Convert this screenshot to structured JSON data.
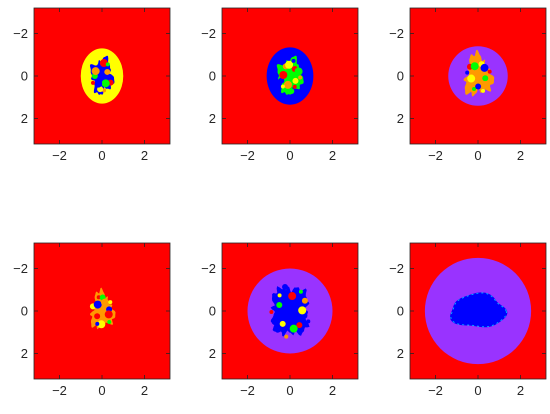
{
  "chart_data": {
    "type": "heatmap",
    "grid": false,
    "xlim": [
      -3.2,
      3.2
    ],
    "ylim": [
      -3.2,
      3.2
    ],
    "y_reversed": true,
    "x_ticks": [
      -2,
      0,
      2
    ],
    "y_ticks": [
      -2,
      0,
      2
    ],
    "x_tick_labels": [
      "−2",
      "0",
      "2"
    ],
    "y_tick_labels": [
      "−2",
      "0",
      "2"
    ],
    "title": "",
    "xlabel": "",
    "ylabel": "",
    "colors": {
      "background": "#ff0000",
      "yellow": "#ffff00",
      "blue": "#0000ff",
      "violet": "#9933ff",
      "green": "#00ff00",
      "orange": "#ff9900",
      "axes": "#262626"
    },
    "panels": [
      {
        "panel": 1,
        "outer_region": "yellow",
        "outer_radius": [
          1.0,
          1.3
        ],
        "inner_region": "blue",
        "inner_radius": [
          0.5,
          0.8
        ],
        "inner_shape": "fractal"
      },
      {
        "panel": 2,
        "outer_region": "blue",
        "outer_radius": [
          1.1,
          1.35
        ],
        "inner_region": "green",
        "inner_radius": [
          0.55,
          0.8
        ],
        "inner_shape": "fractal"
      },
      {
        "panel": 3,
        "outer_region": "violet",
        "outer_radius": [
          1.4,
          1.4
        ],
        "inner_region": "orange",
        "inner_radius": [
          0.6,
          0.9
        ],
        "inner_shape": "fractal-s"
      },
      {
        "panel": 4,
        "outer_region": "none",
        "inner_region": "orange",
        "inner_radius": [
          0.5,
          0.8
        ],
        "inner_shape": "fractal-s"
      },
      {
        "panel": 5,
        "outer_region": "violet",
        "outer_radius": [
          2.0,
          2.0
        ],
        "inner_region": "blue",
        "inner_radius": [
          1.0,
          1.3
        ],
        "inner_shape": "fractal-hourglass"
      },
      {
        "panel": 6,
        "outer_region": "violet",
        "outer_radius": [
          2.5,
          2.5
        ],
        "inner_region": "blue",
        "inner_radius": [
          1.3,
          0.8
        ],
        "inner_shape": "blob"
      }
    ]
  }
}
